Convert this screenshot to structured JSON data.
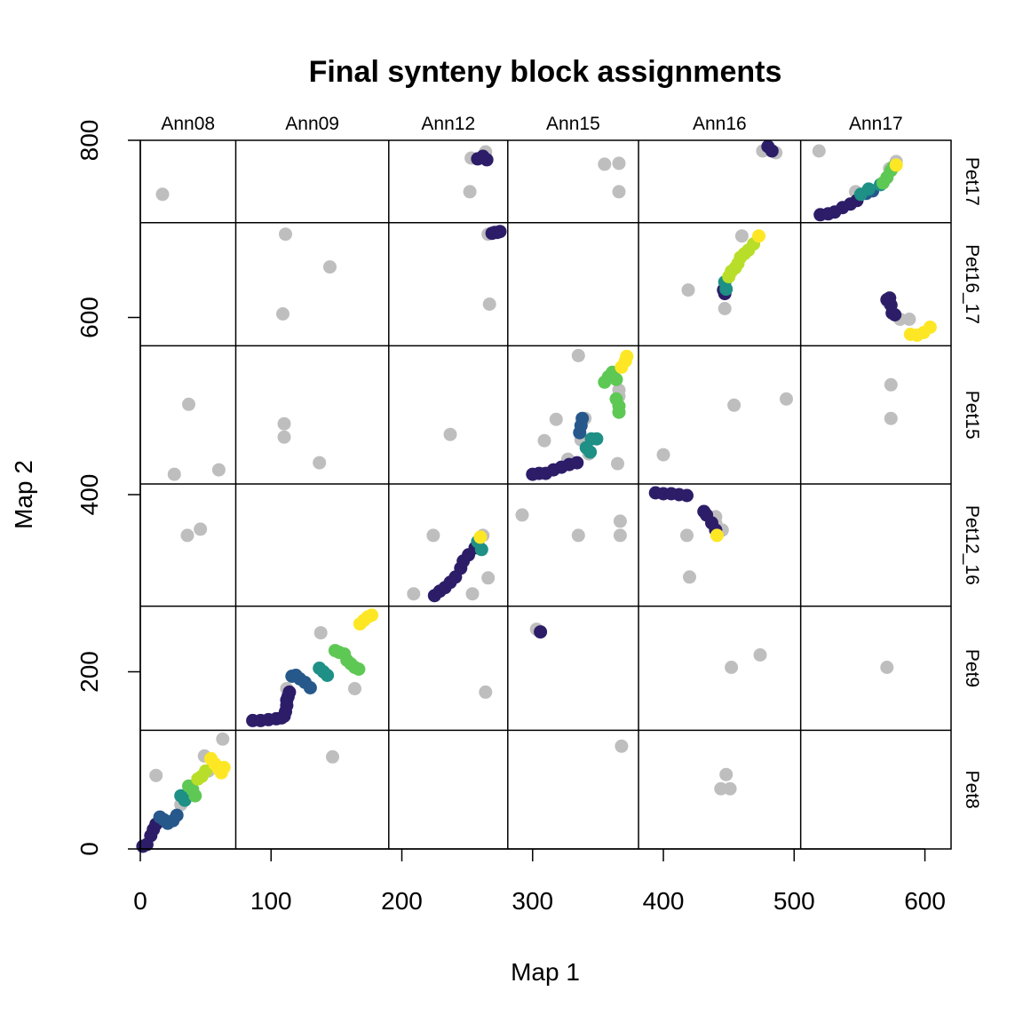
{
  "chart_data": {
    "type": "scatter",
    "title": "Final synteny block assignments",
    "xlabel": "Map 1",
    "ylabel": "Map 2",
    "xlim": [
      0,
      620
    ],
    "ylim": [
      0,
      800
    ],
    "x_ticks": [
      0,
      100,
      200,
      300,
      400,
      500,
      600
    ],
    "y_ticks": [
      0,
      200,
      400,
      600,
      800
    ],
    "grid": false,
    "legend": "none",
    "x_chromosomes": [
      {
        "label": "Ann08",
        "start": 0,
        "end": 73
      },
      {
        "label": "Ann09",
        "start": 73,
        "end": 190
      },
      {
        "label": "Ann12",
        "start": 190,
        "end": 281
      },
      {
        "label": "Ann15",
        "start": 281,
        "end": 381
      },
      {
        "label": "Ann16",
        "start": 381,
        "end": 505
      },
      {
        "label": "Ann17",
        "start": 505,
        "end": 620
      }
    ],
    "y_chromosomes": [
      {
        "label": "Pet8",
        "start": 0,
        "end": 134
      },
      {
        "label": "Pet9",
        "start": 134,
        "end": 274
      },
      {
        "label": "Pet12_16",
        "start": 274,
        "end": 412
      },
      {
        "label": "Pet15",
        "start": 412,
        "end": 568
      },
      {
        "label": "Pet16_17",
        "start": 568,
        "end": 707
      },
      {
        "label": "Pet17",
        "start": 707,
        "end": 800
      }
    ],
    "colors": {
      "unassigned": "#bebebe",
      "block_palette": [
        "#2d1d68",
        "#26588b",
        "#1e9085",
        "#5ec854",
        "#b8de29",
        "#fde725"
      ]
    },
    "series": [
      {
        "group": "unassigned",
        "points": [
          [
            17,
            739
          ],
          [
            111,
            694
          ],
          [
            145,
            657
          ],
          [
            109,
            604
          ],
          [
            37,
            502
          ],
          [
            26,
            423
          ],
          [
            60,
            428
          ],
          [
            110,
            480
          ],
          [
            110,
            465
          ],
          [
            137,
            436
          ],
          [
            36,
            354
          ],
          [
            46,
            361
          ],
          [
            12,
            83
          ],
          [
            63,
            124
          ],
          [
            49,
            105
          ],
          [
            52,
            88
          ],
          [
            31,
            50
          ],
          [
            253,
            780
          ],
          [
            252,
            742
          ],
          [
            264,
            787
          ],
          [
            266,
            694
          ],
          [
            267,
            615
          ],
          [
            237,
            468
          ],
          [
            224,
            354
          ],
          [
            209,
            288
          ],
          [
            254,
            288
          ],
          [
            262,
            354
          ],
          [
            266,
            306
          ],
          [
            264,
            177
          ],
          [
            138,
            244
          ],
          [
            112,
            181
          ],
          [
            164,
            181
          ],
          [
            147,
            104
          ],
          [
            335,
            557
          ],
          [
            318,
            485
          ],
          [
            309,
            461
          ],
          [
            327,
            440
          ],
          [
            340,
            486
          ],
          [
            337,
            462
          ],
          [
            343,
            446
          ],
          [
            366,
            518
          ],
          [
            366,
            511
          ],
          [
            365,
            435
          ],
          [
            292,
            377
          ],
          [
            335,
            354
          ],
          [
            367,
            370
          ],
          [
            367,
            354
          ],
          [
            303,
            248
          ],
          [
            368,
            116
          ],
          [
            355,
            773
          ],
          [
            366,
            774
          ],
          [
            366,
            742
          ],
          [
            419,
            631
          ],
          [
            447,
            610
          ],
          [
            460,
            692
          ],
          [
            400,
            445
          ],
          [
            454,
            501
          ],
          [
            494,
            508
          ],
          [
            418,
            354
          ],
          [
            420,
            307
          ],
          [
            440,
            375
          ],
          [
            440,
            368
          ],
          [
            445,
            360
          ],
          [
            452,
            205
          ],
          [
            474,
            219
          ],
          [
            444,
            68
          ],
          [
            448,
            84
          ],
          [
            451,
            68
          ],
          [
            476,
            788
          ],
          [
            486,
            786
          ],
          [
            519,
            788
          ],
          [
            547,
            742
          ],
          [
            573,
            768
          ],
          [
            578,
            776
          ],
          [
            581,
            598
          ],
          [
            588,
            598
          ],
          [
            572,
            617
          ],
          [
            574,
            524
          ],
          [
            574,
            486
          ],
          [
            571,
            205
          ]
        ]
      },
      {
        "group": "block-1",
        "color_index": 0,
        "points": [
          [
            2,
            3
          ],
          [
            5,
            5
          ],
          [
            8,
            15
          ],
          [
            10,
            22
          ],
          [
            12,
            28
          ],
          [
            86,
            145
          ],
          [
            92,
            145
          ],
          [
            98,
            146
          ],
          [
            104,
            147
          ],
          [
            108,
            148
          ],
          [
            110,
            150
          ],
          [
            111,
            155
          ],
          [
            112,
            162
          ],
          [
            112,
            168
          ],
          [
            113,
            172
          ],
          [
            114,
            177
          ],
          [
            258,
            779
          ],
          [
            262,
            782
          ],
          [
            265,
            778
          ],
          [
            269,
            695
          ],
          [
            271,
            696
          ],
          [
            273,
            696
          ],
          [
            275,
            697
          ],
          [
            225,
            286
          ],
          [
            229,
            291
          ],
          [
            233,
            295
          ],
          [
            237,
            301
          ],
          [
            241,
            307
          ],
          [
            245,
            317
          ],
          [
            247,
            325
          ],
          [
            251,
            332
          ],
          [
            256,
            340
          ],
          [
            300,
            423
          ],
          [
            305,
            424
          ],
          [
            310,
            424
          ],
          [
            316,
            428
          ],
          [
            322,
            431
          ],
          [
            328,
            434
          ],
          [
            334,
            436
          ],
          [
            306,
            245
          ],
          [
            394,
            402
          ],
          [
            400,
            401
          ],
          [
            406,
            401
          ],
          [
            412,
            400
          ],
          [
            418,
            399
          ],
          [
            431,
            381
          ],
          [
            433,
            377
          ],
          [
            437,
            368
          ],
          [
            440,
            360
          ],
          [
            446,
            631
          ],
          [
            447,
            627
          ],
          [
            480,
            793
          ],
          [
            483,
            788
          ],
          [
            520,
            716
          ],
          [
            526,
            717
          ],
          [
            531,
            719
          ],
          [
            537,
            724
          ],
          [
            543,
            728
          ],
          [
            548,
            732
          ],
          [
            571,
            620
          ],
          [
            573,
            622
          ],
          [
            574,
            614
          ],
          [
            575,
            605
          ],
          [
            577,
            603
          ]
        ]
      },
      {
        "group": "block-2",
        "color_index": 1,
        "points": [
          [
            15,
            36
          ],
          [
            18,
            33
          ],
          [
            21,
            29
          ],
          [
            25,
            32
          ],
          [
            28,
            38
          ],
          [
            116,
            195
          ],
          [
            119,
            196
          ],
          [
            122,
            192
          ],
          [
            126,
            188
          ],
          [
            130,
            182
          ],
          [
            336,
            470
          ],
          [
            337,
            478
          ],
          [
            338,
            486
          ],
          [
            555,
            740
          ],
          [
            560,
            743
          ]
        ]
      },
      {
        "group": "block-3",
        "color_index": 2,
        "points": [
          [
            31,
            60
          ],
          [
            34,
            55
          ],
          [
            137,
            204
          ],
          [
            140,
            200
          ],
          [
            143,
            196
          ],
          [
            258,
            347
          ],
          [
            261,
            338
          ],
          [
            345,
            463
          ],
          [
            349,
            463
          ],
          [
            341,
            453
          ],
          [
            344,
            448
          ],
          [
            447,
            640
          ],
          [
            448,
            632
          ],
          [
            551,
            739
          ],
          [
            557,
            745
          ],
          [
            566,
            750
          ]
        ]
      },
      {
        "group": "block-4",
        "color_index": 3,
        "points": [
          [
            37,
            71
          ],
          [
            40,
            67
          ],
          [
            42,
            60
          ],
          [
            149,
            224
          ],
          [
            152,
            222
          ],
          [
            156,
            220
          ],
          [
            158,
            213
          ],
          [
            161,
            209
          ],
          [
            164,
            205
          ],
          [
            167,
            203
          ],
          [
            355,
            527
          ],
          [
            358,
            533
          ],
          [
            361,
            538
          ],
          [
            364,
            530
          ],
          [
            364,
            508
          ],
          [
            366,
            500
          ],
          [
            366,
            493
          ],
          [
            568,
            752
          ],
          [
            571,
            758
          ],
          [
            574,
            766
          ],
          [
            576,
            770
          ]
        ]
      },
      {
        "group": "block-5",
        "color_index": 4,
        "points": [
          [
            44,
            79
          ],
          [
            47,
            82
          ],
          [
            50,
            88
          ],
          [
            450,
            646
          ],
          [
            452,
            652
          ],
          [
            455,
            656
          ],
          [
            457,
            661
          ],
          [
            459,
            668
          ],
          [
            462,
            672
          ],
          [
            465,
            676
          ],
          [
            469,
            683
          ]
        ]
      },
      {
        "group": "block-6",
        "color_index": 5,
        "points": [
          [
            54,
            102
          ],
          [
            57,
            96
          ],
          [
            60,
            90
          ],
          [
            62,
            86
          ],
          [
            64,
            92
          ],
          [
            168,
            254
          ],
          [
            171,
            258
          ],
          [
            174,
            262
          ],
          [
            177,
            264
          ],
          [
            260,
            352
          ],
          [
            368,
            544
          ],
          [
            371,
            551
          ],
          [
            372,
            556
          ],
          [
            441,
            354
          ],
          [
            473,
            692
          ],
          [
            578,
            772
          ],
          [
            589,
            581
          ],
          [
            594,
            580
          ],
          [
            599,
            583
          ],
          [
            604,
            589
          ]
        ]
      }
    ]
  }
}
